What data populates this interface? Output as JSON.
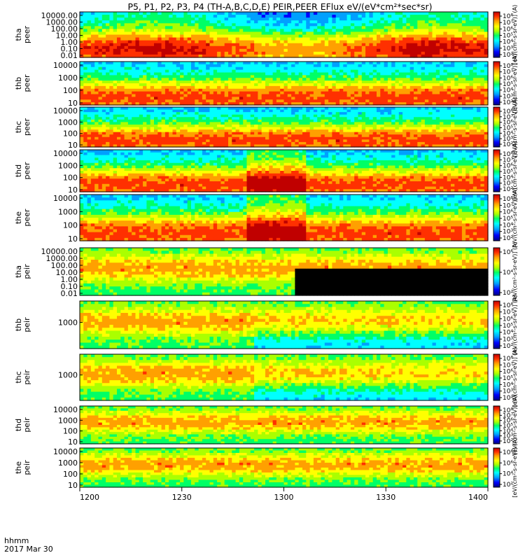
{
  "chart_data": {
    "type": "heatmap",
    "title": "P5, P1, P2, P3, P4 (TH-A,B,C,D,E) PEIR,PEER EFlux eV/(eV*cm²*sec*sr)",
    "xaxis": {
      "ticks": [
        "1200",
        "1230",
        "1300",
        "1330",
        "1400"
      ],
      "start_label": "hhmm",
      "date_label": "2017 Mar 30",
      "range": [
        "12:00",
        "14:00"
      ]
    },
    "color_scale": {
      "type": "log",
      "colors": [
        "#000080",
        "#0000ff",
        "#00a0ff",
        "#00ffff",
        "#00ff66",
        "#aaff00",
        "#ffff00",
        "#ffa000",
        "#ff3000",
        "#c00000"
      ],
      "saturation_color": "#000000"
    },
    "panels": [
      {
        "probe": "tha",
        "species": "peer",
        "ylabel": [
          "tha",
          "peer"
        ],
        "yticks": [
          "10000.00",
          "1000.00",
          "100.00",
          "10.00",
          "1.00",
          "0.10",
          "0.01"
        ],
        "cbar_ticks": [
          "10⁸",
          "10⁷",
          "10⁶",
          "10⁵",
          "10⁴",
          "10³",
          "10²"
        ],
        "cbar_label": "[eV/(cm²-s-sr-eV)] (A)"
      },
      {
        "probe": "thb",
        "species": "peer",
        "ylabel": [
          "thb",
          "peer"
        ],
        "yticks": [
          "10000",
          "1000",
          "100",
          "10"
        ],
        "cbar_ticks": [
          "10⁸",
          "10⁷",
          "10⁶",
          "10⁵",
          "10⁴",
          "10³",
          "10²"
        ],
        "cbar_label": "[eV/(cm²-s-sr-eV)] (A)"
      },
      {
        "probe": "thc",
        "species": "peer",
        "ylabel": [
          "thc",
          "peer"
        ],
        "yticks": [
          "10000",
          "1000",
          "100",
          "10"
        ],
        "cbar_ticks": [
          "10⁸",
          "10⁷",
          "10⁶",
          "10⁵",
          "10⁴",
          "10³",
          "10²"
        ],
        "cbar_label": "[eV/(cm²-s-sr-eV)] (A)"
      },
      {
        "probe": "thd",
        "species": "peer",
        "ylabel": [
          "thd",
          "peer"
        ],
        "yticks": [
          "10000",
          "1000",
          "100",
          "10"
        ],
        "cbar_ticks": [
          "10⁸",
          "10⁷",
          "10⁶",
          "10⁵",
          "10⁴",
          "10³",
          "10²"
        ],
        "cbar_label": "[eV/(cm²-s-sr-eV)] (A)"
      },
      {
        "probe": "the",
        "species": "peer",
        "ylabel": [
          "the",
          "peer"
        ],
        "yticks": [
          "10000",
          "1000",
          "100",
          "10"
        ],
        "cbar_ticks": [
          "10⁸",
          "10⁷",
          "10⁶",
          "10⁵",
          "10⁴",
          "10³",
          "10²"
        ],
        "cbar_label": "[eV/(cm²-s-sr-eV)] (A)"
      },
      {
        "probe": "tha",
        "species": "peir",
        "ylabel": [
          "tha",
          "peir"
        ],
        "yticks": [
          "10000.00",
          "1000.00",
          "100.00",
          "10.00",
          "1.00",
          "0.10",
          "0.01"
        ],
        "cbar_ticks": [
          "10⁶",
          "10⁴",
          "10²"
        ],
        "cbar_label": "[eV/(cm²-s-sr-eV)] (A)"
      },
      {
        "probe": "thb",
        "species": "peir",
        "ylabel": [
          "thb",
          "peir"
        ],
        "yticks": [
          "1000"
        ],
        "cbar_ticks": [
          "10⁸",
          "10⁷",
          "10⁶",
          "10⁵",
          "10⁴",
          "10³",
          "10²"
        ],
        "cbar_label": "[eV/(cm²-s-sr-eV)] (A)"
      },
      {
        "probe": "thc",
        "species": "peir",
        "ylabel": [
          "thc",
          "peir"
        ],
        "yticks": [
          "1000"
        ],
        "cbar_ticks": [
          "10⁸",
          "10⁷",
          "10⁶",
          "10⁵",
          "10⁴",
          "10³",
          "10²"
        ],
        "cbar_label": "[eV/(cm²-s-sr-eV)] (A)"
      },
      {
        "probe": "thd",
        "species": "peir",
        "ylabel": [
          "thd",
          "peir"
        ],
        "yticks": [
          "10000",
          "1000",
          "100",
          "10"
        ],
        "cbar_ticks": [
          "10⁸",
          "10⁷",
          "10⁶",
          "10⁵",
          "10⁴",
          "10³",
          "10²"
        ],
        "cbar_label": "[eV/(cm²-s-sr-eV)] (A)"
      },
      {
        "probe": "the",
        "species": "peir",
        "ylabel": [
          "the",
          "peir"
        ],
        "yticks": [
          "10000",
          "1000",
          "100",
          "10"
        ],
        "cbar_ticks": [
          "10⁸",
          "10⁶",
          "10⁴",
          "10²"
        ],
        "cbar_label": "[eV/(cm²-s-sr-eV)] (A)"
      }
    ]
  }
}
